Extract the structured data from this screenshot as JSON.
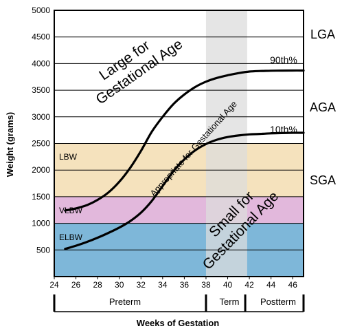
{
  "chart_data": {
    "type": "line",
    "xlabel": "Weeks of Gestation",
    "ylabel": "Weight (grams)",
    "xlim": [
      24,
      47
    ],
    "ylim": [
      0,
      5000
    ],
    "x_ticks": [
      "24",
      "26",
      "28",
      "30",
      "32",
      "34",
      "36",
      "38",
      "40",
      "42",
      "44",
      "46"
    ],
    "y_ticks": [
      "500",
      "1000",
      "1500",
      "2000",
      "2500",
      "3000",
      "3500",
      "4000",
      "4500",
      "5000"
    ],
    "series": [
      {
        "name": "90th%",
        "x": [
          25,
          26,
          27,
          28,
          29,
          30,
          31,
          32,
          33,
          34,
          35,
          36,
          37,
          38,
          39,
          40,
          41,
          42,
          43,
          44,
          45,
          46,
          47
        ],
        "values": [
          1240,
          1280,
          1340,
          1440,
          1580,
          1780,
          2040,
          2360,
          2720,
          3000,
          3240,
          3420,
          3560,
          3660,
          3730,
          3780,
          3820,
          3850,
          3860,
          3865,
          3868,
          3870,
          3870
        ]
      },
      {
        "name": "10th%",
        "x": [
          25,
          26,
          27,
          28,
          29,
          30,
          31,
          32,
          33,
          34,
          35,
          36,
          37,
          38,
          39,
          40,
          41,
          42,
          43,
          44,
          45,
          46,
          47
        ],
        "values": [
          520,
          580,
          650,
          730,
          820,
          920,
          1040,
          1200,
          1420,
          1700,
          1980,
          2200,
          2370,
          2490,
          2570,
          2620,
          2650,
          2670,
          2680,
          2690,
          2695,
          2700,
          2700
        ]
      }
    ],
    "bands": [
      {
        "label": "ELBW",
        "y": [
          0,
          1000
        ],
        "color": "#7eb7d9"
      },
      {
        "label": "VLBW",
        "y": [
          1000,
          1500
        ],
        "color": "#e2b8dc"
      },
      {
        "label": "LBW",
        "y": [
          1500,
          2500
        ],
        "color": "#f5e2bd"
      }
    ],
    "term_shading": {
      "x": [
        38,
        41.8
      ],
      "color": "#dcdcdc"
    },
    "region_labels": {
      "large": [
        "Large for",
        "Gestational Age"
      ],
      "appropriate": "Appropriate for Gestational Age",
      "small": [
        "Small for",
        "Gestational Age"
      ]
    },
    "right_labels": [
      "LGA",
      "AGA",
      "SGA"
    ],
    "periods": [
      {
        "label": "Preterm",
        "x": [
          24,
          38
        ]
      },
      {
        "label": "Term",
        "x": [
          38,
          42
        ]
      },
      {
        "label": "Postterm",
        "x": [
          42,
          47
        ]
      }
    ],
    "grid": "horizontal",
    "colors": {
      "line": "#000000"
    }
  }
}
